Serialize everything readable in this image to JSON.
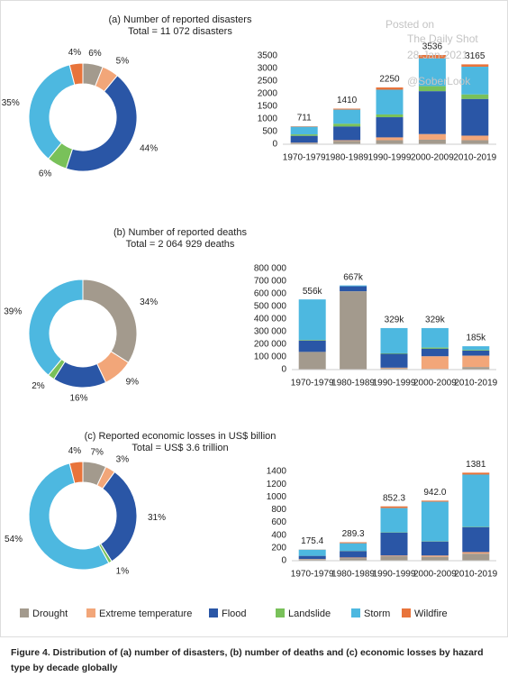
{
  "chart_data": [
    {
      "type": "pie",
      "title": "(a) Number of reported disasters",
      "subtitle": "Total = 11 072 disasters",
      "categories": [
        "Drought",
        "Extreme temperature",
        "Flood",
        "Landslide",
        "Storm",
        "Wildfire"
      ],
      "values": [
        6,
        5,
        44,
        6,
        35,
        4
      ],
      "value_labels": [
        "6%",
        "5%",
        "44%",
        "6%",
        "35%",
        "4%"
      ],
      "colors": [
        "#a39a8d",
        "#f2a679",
        "#2a56a6",
        "#79c15a",
        "#4db8e0",
        "#e8743b"
      ]
    },
    {
      "type": "bar",
      "stacked": true,
      "categories": [
        "1970-1979",
        "1980-1989",
        "1990-1999",
        "2000-2009",
        "2010-2019"
      ],
      "ylim": [
        0,
        3500
      ],
      "yticks": [
        0,
        500,
        1000,
        1500,
        2000,
        2500,
        3000,
        3500
      ],
      "grid": false,
      "totals": [
        711,
        1410,
        2250,
        3536,
        3165
      ],
      "series": [
        {
          "name": "Drought",
          "color": "#a39a8d",
          "values": [
            50,
            130,
            160,
            180,
            160
          ]
        },
        {
          "name": "Extreme temperature",
          "color": "#f2a679",
          "values": [
            10,
            30,
            110,
            220,
            180
          ]
        },
        {
          "name": "Flood",
          "color": "#2a56a6",
          "values": [
            270,
            540,
            800,
            1700,
            1450
          ]
        },
        {
          "name": "Landslide",
          "color": "#79c15a",
          "values": [
            60,
            110,
            110,
            200,
            180
          ]
        },
        {
          "name": "Storm",
          "color": "#4db8e0",
          "values": [
            300,
            560,
            980,
            1100,
            1100
          ]
        },
        {
          "name": "Wildfire",
          "color": "#e8743b",
          "values": [
            21,
            40,
            90,
            136,
            95
          ]
        }
      ]
    },
    {
      "type": "pie",
      "title": "(b) Number of reported deaths",
      "subtitle": "Total = 2 064 929 deaths",
      "categories": [
        "Drought",
        "Extreme temperature",
        "Flood",
        "Landslide",
        "Storm"
      ],
      "values": [
        34,
        9,
        16,
        2,
        39
      ],
      "value_labels": [
        "34%",
        "9%",
        "16%",
        "2%",
        "39%"
      ],
      "colors": [
        "#a39a8d",
        "#f2a679",
        "#2a56a6",
        "#79c15a",
        "#4db8e0"
      ]
    },
    {
      "type": "bar",
      "stacked": true,
      "categories": [
        "1970-1979",
        "1980-1989",
        "1990-1999",
        "2000-2009",
        "2010-2019"
      ],
      "ylim": [
        0,
        800000
      ],
      "grid": false,
      "yticks": [
        0,
        {
          "value": 100000,
          "label": "100 000"
        },
        {
          "value": 200000,
          "label": "200 000"
        },
        {
          "value": 300000,
          "label": "300 000"
        },
        {
          "value": 400000,
          "label": "400 000"
        },
        {
          "value": 500000,
          "label": "500 000"
        },
        {
          "value": 600000,
          "label": "600 000"
        },
        {
          "value": 700000,
          "label": "700 000"
        },
        {
          "value": 800000,
          "label": "800 000"
        }
      ],
      "totals": [
        556000,
        667000,
        329000,
        329000,
        185000
      ],
      "total_labels": [
        "556k",
        "667k",
        "329k",
        "329k",
        "185k"
      ],
      "series": [
        {
          "name": "Drought",
          "color": "#a39a8d",
          "values": [
            140000,
            620000,
            10000,
            5000,
            20000
          ]
        },
        {
          "name": "Extreme temperature",
          "color": "#f2a679",
          "values": [
            0,
            0,
            5000,
            100000,
            90000
          ]
        },
        {
          "name": "Flood",
          "color": "#2a56a6",
          "values": [
            90000,
            40000,
            110000,
            60000,
            40000
          ]
        },
        {
          "name": "Landslide",
          "color": "#79c15a",
          "values": [
            5000,
            0,
            4000,
            9000,
            5000
          ]
        },
        {
          "name": "Storm",
          "color": "#4db8e0",
          "values": [
            321000,
            7000,
            200000,
            155000,
            30000
          ]
        },
        {
          "name": "Wildfire",
          "color": "#e8743b",
          "values": [
            0,
            0,
            0,
            0,
            0
          ]
        }
      ]
    },
    {
      "type": "pie",
      "title": "(c) Reported economic losses in US$ billion",
      "subtitle": "Total = US$ 3.6 trillion",
      "categories": [
        "Drought",
        "Extreme temperature",
        "Flood",
        "Landslide",
        "Storm",
        "Wildfire"
      ],
      "values": [
        7,
        3,
        31,
        1,
        54,
        4
      ],
      "value_labels": [
        "7%",
        "3%",
        "31%",
        "1%",
        "54%",
        "4%"
      ],
      "colors": [
        "#a39a8d",
        "#f2a679",
        "#2a56a6",
        "#79c15a",
        "#4db8e0",
        "#e8743b"
      ]
    },
    {
      "type": "bar",
      "stacked": true,
      "categories": [
        "1970-1979",
        "1980-1989",
        "1990-1999",
        "2000-2009",
        "2010-2019"
      ],
      "ylim": [
        0,
        1400
      ],
      "yticks": [
        0,
        200,
        400,
        600,
        800,
        1000,
        1200,
        1400
      ],
      "grid": false,
      "totals": [
        175.4,
        289.3,
        852.3,
        942,
        1381
      ],
      "total_labels": [
        "175.4",
        "289.3",
        "852.3",
        "942.0",
        "1381"
      ],
      "series": [
        {
          "name": "Drought",
          "color": "#a39a8d",
          "values": [
            20,
            40,
            70,
            60,
            110
          ]
        },
        {
          "name": "Extreme temperature",
          "color": "#f2a679",
          "values": [
            5,
            10,
            10,
            20,
            25
          ]
        },
        {
          "name": "Flood",
          "color": "#2a56a6",
          "values": [
            50,
            100,
            360,
            220,
            390
          ]
        },
        {
          "name": "Landslide",
          "color": "#79c15a",
          "values": [
            2,
            3,
            5,
            5,
            6
          ]
        },
        {
          "name": "Storm",
          "color": "#4db8e0",
          "values": [
            95,
            120,
            380,
            620,
            820
          ]
        },
        {
          "name": "Wildfire",
          "color": "#e8743b",
          "values": [
            3.4,
            16.3,
            27.3,
            17,
            30
          ]
        }
      ]
    }
  ],
  "caption": "Figure 4. Distribution of (a) number of disasters, (b) number of deaths and (c) economic losses by hazard type by decade globally",
  "watermark": [
    "Posted on",
    "The Daily Shot",
    "28-Jan-2021",
    "@SoberLook"
  ]
}
